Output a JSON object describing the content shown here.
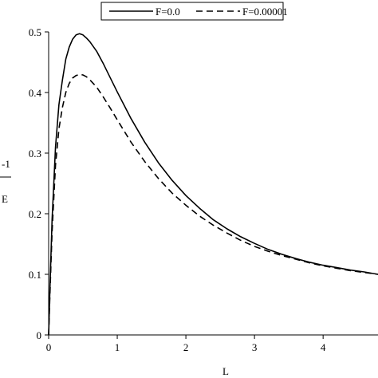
{
  "chart_data": {
    "type": "line",
    "title": "",
    "xlabel": "L",
    "ylabel_fragment": "-1",
    "ylabel_fragment_bottom": "E",
    "xlim": [
      0,
      4.8
    ],
    "ylim": [
      0,
      0.5
    ],
    "x_ticks": [
      "0",
      "1",
      "2",
      "3",
      "4"
    ],
    "y_ticks": [
      "0",
      "0.1",
      "0.2",
      "0.3",
      "0.4",
      "0.5"
    ],
    "grid": false,
    "legend_position": "top",
    "series": [
      {
        "name": "F=0.0",
        "line_style": "solid",
        "color": "#000000",
        "x": [
          0,
          0.02,
          0.05,
          0.1,
          0.15,
          0.2,
          0.25,
          0.3,
          0.35,
          0.4,
          0.45,
          0.5,
          0.55,
          0.6,
          0.7,
          0.8,
          0.9,
          1.0,
          1.2,
          1.4,
          1.6,
          1.8,
          2.0,
          2.2,
          2.4,
          2.6,
          2.8,
          3.0,
          3.2,
          3.4,
          3.6,
          3.8,
          4.0,
          4.2,
          4.4,
          4.6,
          4.8
        ],
        "y": [
          0,
          0.08,
          0.19,
          0.31,
          0.38,
          0.42,
          0.455,
          0.475,
          0.488,
          0.495,
          0.497,
          0.495,
          0.49,
          0.484,
          0.468,
          0.447,
          0.424,
          0.401,
          0.357,
          0.318,
          0.284,
          0.255,
          0.23,
          0.209,
          0.19,
          0.175,
          0.162,
          0.151,
          0.141,
          0.133,
          0.126,
          0.12,
          0.115,
          0.111,
          0.107,
          0.104,
          0.1
        ]
      },
      {
        "name": "F=0.00001",
        "line_style": "dashed",
        "color": "#000000",
        "x": [
          0,
          0.02,
          0.05,
          0.1,
          0.15,
          0.2,
          0.25,
          0.3,
          0.35,
          0.4,
          0.45,
          0.5,
          0.55,
          0.6,
          0.7,
          0.8,
          0.9,
          1.0,
          1.2,
          1.4,
          1.6,
          1.8,
          2.0,
          2.2,
          2.4,
          2.6,
          2.8,
          3.0,
          3.2,
          3.4,
          3.6,
          3.8,
          4.0,
          4.2,
          4.4,
          4.6,
          4.8
        ],
        "y": [
          0,
          0.07,
          0.17,
          0.28,
          0.34,
          0.375,
          0.4,
          0.415,
          0.424,
          0.428,
          0.43,
          0.429,
          0.426,
          0.421,
          0.409,
          0.392,
          0.374,
          0.355,
          0.318,
          0.286,
          0.258,
          0.234,
          0.214,
          0.196,
          0.181,
          0.168,
          0.156,
          0.146,
          0.138,
          0.131,
          0.125,
          0.119,
          0.114,
          0.11,
          0.106,
          0.103,
          0.1
        ]
      }
    ]
  }
}
